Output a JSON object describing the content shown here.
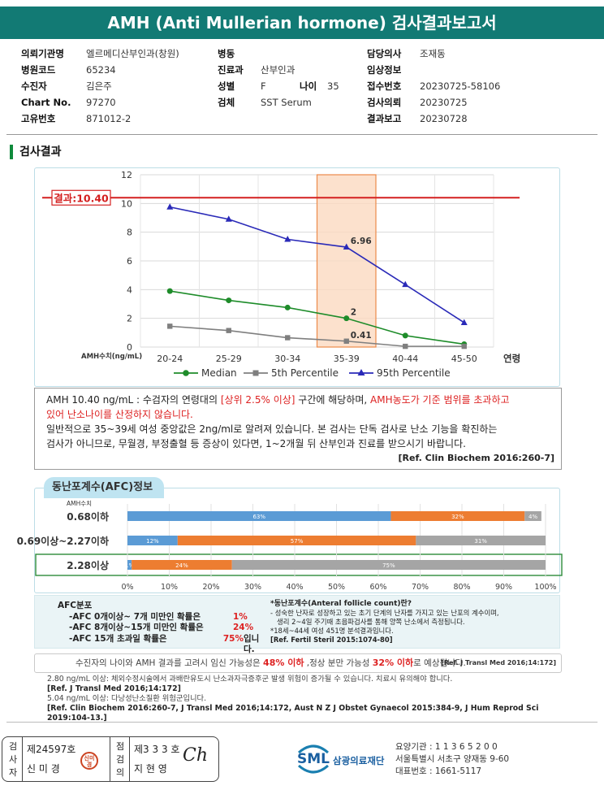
{
  "report": {
    "title": "AMH (Anti Mullerian hormone) 검사결과보고서"
  },
  "patient_info": {
    "col1": [
      {
        "label": "의뢰기관명",
        "value": "엘르메디산부인과(창원)"
      },
      {
        "label": "병원코드",
        "value": "65234"
      },
      {
        "label": "수진자",
        "value": "김은주"
      },
      {
        "label": "Chart No.",
        "value": "97270"
      },
      {
        "label": "고유번호",
        "value": "871012-2"
      }
    ],
    "col2": [
      {
        "label": "병동",
        "value": ""
      },
      {
        "label": "진료과",
        "value": "산부인과"
      },
      {
        "label": "성별",
        "value": "F"
      },
      {
        "label": "검체",
        "value": "SST Serum"
      }
    ],
    "age": {
      "label": "나이",
      "value": "35"
    },
    "col3": [
      {
        "label": "담당의사",
        "value": "조재동"
      },
      {
        "label": "임상정보",
        "value": ""
      },
      {
        "label": "접수번호",
        "value": "20230725-58106"
      },
      {
        "label": "검사의뢰",
        "value": "20230725"
      },
      {
        "label": "결과보고",
        "value": "20230728"
      }
    ]
  },
  "section_title": "검사결과",
  "chart_data": {
    "type": "line",
    "categories": [
      "20-24",
      "25-29",
      "30-34",
      "35-39",
      "40-44",
      "45-50"
    ],
    "x_axis_suffix": "연령",
    "y_axis_label": "AMH수치(ng/mL)",
    "ylim": [
      0,
      12
    ],
    "yticks": [
      0,
      2,
      4,
      6,
      8,
      10,
      12
    ],
    "grid": true,
    "highlight_category": "35-39",
    "result_line": {
      "value": 10.4,
      "label": "결과:10.40",
      "color": "#d42020"
    },
    "series": [
      {
        "name": "Median",
        "color": "#1e8c2a",
        "marker": "circle",
        "values": [
          3.9,
          3.25,
          2.75,
          2.0,
          0.8,
          0.2
        ]
      },
      {
        "name": "5th Percentile",
        "color": "#7f7f7f",
        "marker": "square",
        "values": [
          1.45,
          1.15,
          0.65,
          0.41,
          0.05,
          0.05
        ]
      },
      {
        "name": "95th Percentile",
        "color": "#2a2ab8",
        "marker": "triangle",
        "values": [
          9.75,
          8.9,
          7.5,
          6.96,
          4.35,
          1.7
        ]
      }
    ],
    "data_labels": [
      {
        "series": 2,
        "index": 3,
        "text": "6.96"
      },
      {
        "series": 0,
        "index": 3,
        "text": "2"
      },
      {
        "series": 1,
        "index": 3,
        "text": "0.41"
      }
    ]
  },
  "description": {
    "line1_prefix": "AMH  10.40 ng/mL : 수검자의 연령대의 ",
    "line1_red1": "[상위 2.5% 이상]",
    "line1_mid": " 구간에 해당하며, ",
    "line1_red2": "AMH농도가 기준 범위를 초과하고",
    "line2_red": "있어 난소나이를 산정하지 않습니다.",
    "line3": "일반적으로 35~39세 여성 중앙값은 2ng/ml로 알려져 있습니다. 본 검사는 단독 검사로 난소 기능을 확진하는",
    "line4": "검사가 아니므로, 무월경, 부정출혈 등 증상이 있다면, 1~2개월 뒤 산부인과 진료를 받으시기 바랍니다.",
    "reference": "[Ref. Clin Biochem 2016:260-7]"
  },
  "afc": {
    "tab_title": "동난포계수(AFC)정보",
    "amh_header": "AMH수치",
    "colors": {
      "low": "#5b9bd5",
      "mid": "#ed7d31",
      "high": "#a5a5a5",
      "highlight_border": "#2e8b3a"
    },
    "rows": [
      {
        "label": "0.68이하",
        "segments": [
          63,
          32,
          4
        ],
        "texts": [
          "63%",
          "32%",
          "4%"
        ]
      },
      {
        "label": "0.69이상~2.27이하",
        "segments": [
          12,
          57,
          31
        ],
        "texts": [
          "12%",
          "57%",
          "31%"
        ]
      },
      {
        "label": "2.28이상",
        "segments": [
          1,
          24,
          75
        ],
        "texts": [
          "1%",
          "24%",
          "75%"
        ],
        "highlighted": true
      }
    ],
    "ticks": [
      "0%",
      "10%",
      "20%",
      "30%",
      "40%",
      "50%",
      "60%",
      "70%",
      "80%",
      "90%",
      "100%"
    ],
    "dist_title": "AFC분포",
    "dist": [
      {
        "text": "-AFC 0개이상~ 7개 미만인 확률은",
        "value": "1%",
        "suffix": ""
      },
      {
        "text": "-AFC 8개이상~15개 미만인 확률은",
        "value": "24%",
        "suffix": ""
      },
      {
        "text": "-AFC 15개 초과일 확률은",
        "value": "75%",
        "suffix": " 입니다."
      }
    ],
    "def_title": "*동난포계수(Anteral follicle count)란?",
    "def_line1": "- 성숙한 난자로 성장하고 있는 초기 단계의 난자를 가지고 있는 난포의 계수이며,",
    "def_line2": "생리 2~4일 주기때 초음파검사를 통해 양쪽 난소에서 측정됩니다.",
    "def_line3": "*18세~44세 여성 451명 분석결과입니다.",
    "def_ref": "[Ref. Fertil Steril 2015:1074-80]"
  },
  "summary": {
    "prefix": "수진자의 나이와 AMH 결과를 고려시 임신 가능성은 ",
    "val1": "48% 이하",
    "mid": " ,정상 분만 가능성 ",
    "val2": "32% 이하",
    "suffix": "로 예상됩니다.",
    "ref": "[Ref. J Transl Med 2016;14:172]"
  },
  "notes": {
    "line1": "2.80  ng/mL  이상: 체외수정시술에서 과배란유도시 난소과자극증후군 발생 위험이 증가될 수 있습니다. 치료시 유의해야 합니다.",
    "ref1": "[Ref. J Transl Med 2016;14:172]",
    "line2": "5.04  ng/mL  이상: 다낭성난소질환 위험군입니다.",
    "ref2": "[Ref. Clin Biochem 2016:260-7, J Transl Med 2016;14:172, Aust N Z J Obstet Gynaecol 2015:384-9, J Hum Reprod Sci 2019:104-13.]"
  },
  "signature": {
    "tester_label": "검사자",
    "tester_no": "제24597호",
    "tester_name": "신 미 경",
    "tester_stamp": "신미경",
    "reviewer_label": "점검의",
    "reviewer_no": "제3 3 3 호",
    "reviewer_name": "지 현 영",
    "reviewer_sign": "Ch"
  },
  "lab": {
    "logo_text": "SML",
    "name": "삼광의료재단",
    "code": "요양기관 : 1 1 3 6 5 2 0 0",
    "address": "서울특별시 서초구 양재동 9-60",
    "phone": "대표번호 : 1661-5117"
  }
}
